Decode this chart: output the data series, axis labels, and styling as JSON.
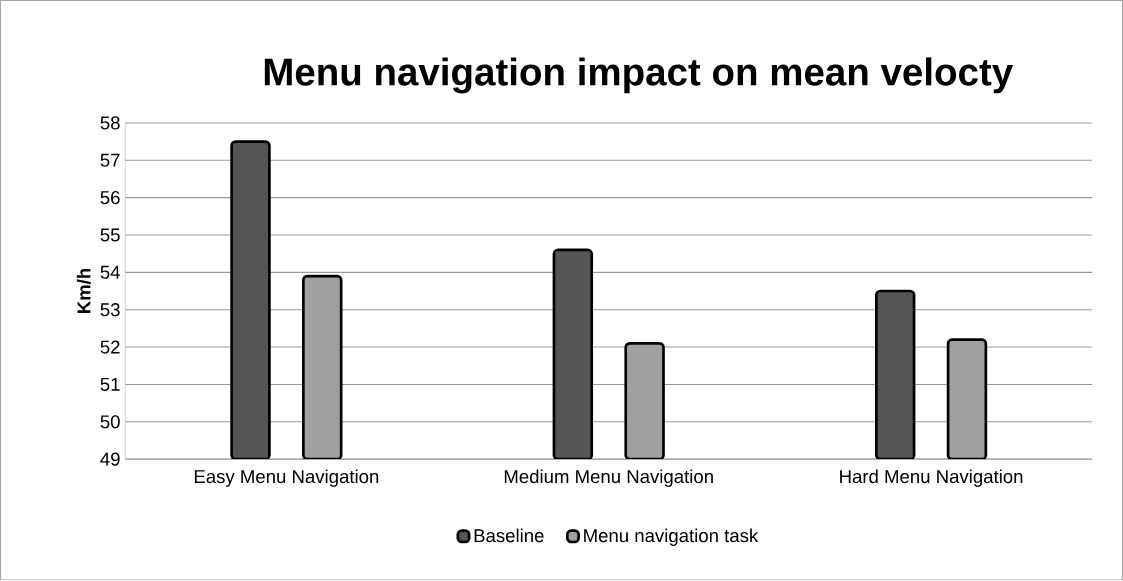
{
  "chart_data": {
    "type": "bar",
    "title": "Menu navigation impact on mean velocty",
    "ylabel": "Km/h",
    "categories": [
      "Easy Menu Navigation",
      "Medium Menu Navigation",
      "Hard Menu Navigation"
    ],
    "series": [
      {
        "name": "Baseline",
        "color": "#555555",
        "values": [
          57.5,
          54.6,
          53.5
        ]
      },
      {
        "name": "Menu navigation task",
        "color": "#a0a0a0",
        "values": [
          53.9,
          52.1,
          52.2
        ]
      }
    ],
    "ylim": [
      49,
      58
    ],
    "yticks": [
      49,
      50,
      51,
      52,
      53,
      54,
      55,
      56,
      57,
      58
    ],
    "grid": "y",
    "legend": "bottom"
  }
}
